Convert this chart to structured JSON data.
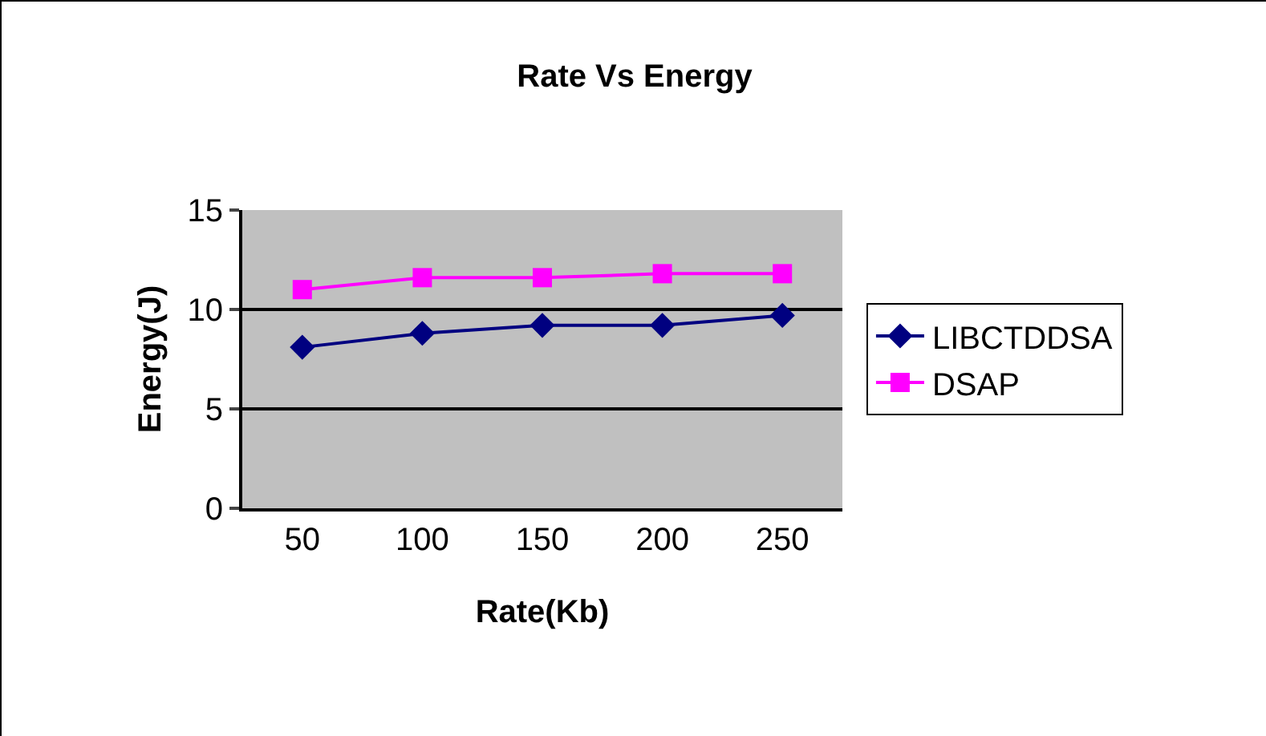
{
  "chart_data": {
    "type": "line",
    "title": "Rate Vs Energy",
    "xlabel": "Rate(Kb)",
    "ylabel": "Energy(J)",
    "categories": [
      "50",
      "100",
      "150",
      "200",
      "250"
    ],
    "series": [
      {
        "name": "LIBCTDDSA",
        "color": "#000080",
        "marker": "diamond",
        "values": [
          8.1,
          8.8,
          9.2,
          9.2,
          9.7
        ]
      },
      {
        "name": "DSAP",
        "color": "#ff00ff",
        "marker": "square",
        "values": [
          11.0,
          11.6,
          11.6,
          11.8,
          11.8
        ]
      }
    ],
    "ylim": [
      0,
      15
    ],
    "yticks": [
      0,
      5,
      10,
      15
    ],
    "grid": "y",
    "legend": "right"
  }
}
